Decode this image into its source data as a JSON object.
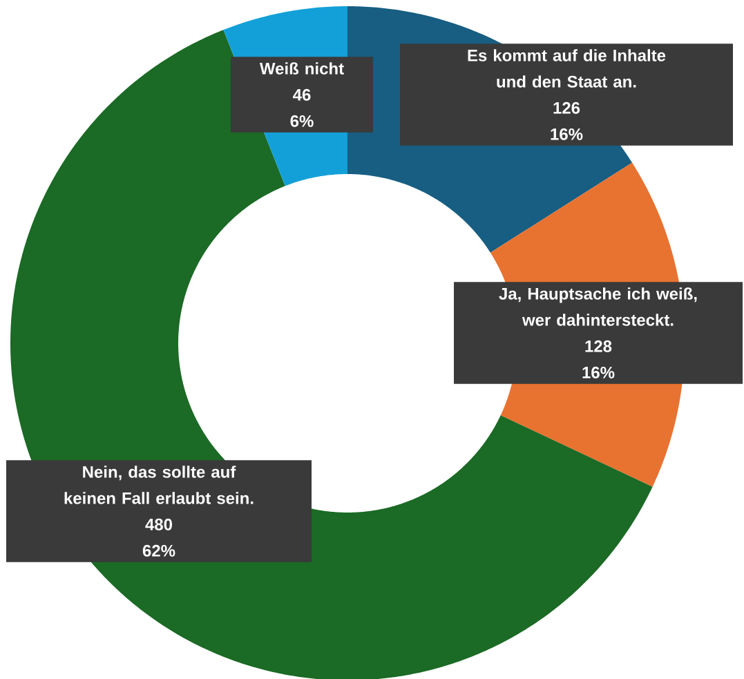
{
  "chart_data": {
    "type": "donut",
    "categories": [
      "Es kommt auf die Inhalte und den Staat an.",
      "Ja, Hauptsache ich weiß, wer dahintersteckt.",
      "Nein, das sollte auf keinen Fall erlaubt sein.",
      "Weiß nicht"
    ],
    "values": [
      16,
      16,
      62,
      6
    ],
    "colors": [
      "#175e82",
      "#e87230",
      "#1b6a25",
      "#13a0d8"
    ],
    "value_labels": [
      "16%",
      "16%",
      "62%",
      "6%"
    ],
    "annotations": [
      "126",
      "128",
      "480",
      "46"
    ]
  }
}
